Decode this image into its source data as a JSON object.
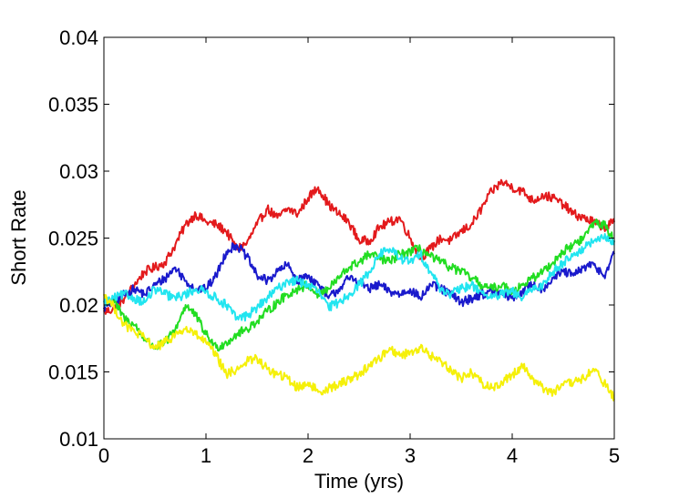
{
  "chart_data": {
    "type": "line",
    "title": "",
    "xlabel": "Time (yrs)",
    "ylabel": "Short Rate",
    "xlim": [
      0,
      5
    ],
    "ylim": [
      0.01,
      0.04
    ],
    "xticks": [
      0,
      1,
      2,
      3,
      4,
      5
    ],
    "yticks": [
      0.01,
      0.015,
      0.02,
      0.025,
      0.03,
      0.035,
      0.04
    ],
    "ytick_labels": [
      "0.01",
      "0.015",
      "0.02",
      "0.025",
      "0.03",
      "0.035",
      "0.04"
    ],
    "xtick_labels": [
      "0",
      "1",
      "2",
      "3",
      "4",
      "5"
    ],
    "grid": false,
    "legend": "none",
    "series": [
      {
        "color": "#e31a1c",
        "x": [
          0,
          0.1,
          0.2,
          0.3,
          0.4,
          0.5,
          0.6,
          0.7,
          0.8,
          0.9,
          1.0,
          1.1,
          1.2,
          1.3,
          1.4,
          1.5,
          1.6,
          1.7,
          1.8,
          1.9,
          2.0,
          2.1,
          2.2,
          2.3,
          2.4,
          2.5,
          2.6,
          2.7,
          2.8,
          2.9,
          3.0,
          3.1,
          3.2,
          3.3,
          3.4,
          3.5,
          3.6,
          3.7,
          3.8,
          3.9,
          4.0,
          4.1,
          4.2,
          4.3,
          4.4,
          4.5,
          4.6,
          4.7,
          4.8,
          4.9,
          5.0
        ],
        "y": [
          0.0195,
          0.0197,
          0.0205,
          0.0215,
          0.0225,
          0.0228,
          0.0232,
          0.0245,
          0.026,
          0.0268,
          0.0262,
          0.026,
          0.0255,
          0.0242,
          0.0246,
          0.026,
          0.0272,
          0.0265,
          0.0272,
          0.0268,
          0.028,
          0.0288,
          0.0275,
          0.0268,
          0.0262,
          0.0248,
          0.0248,
          0.0258,
          0.0262,
          0.0265,
          0.025,
          0.0235,
          0.0242,
          0.025,
          0.0248,
          0.0255,
          0.026,
          0.0272,
          0.0285,
          0.0292,
          0.0288,
          0.0285,
          0.0278,
          0.0282,
          0.028,
          0.0275,
          0.0268,
          0.0265,
          0.0262,
          0.0258,
          0.0262
        ]
      },
      {
        "color": "#1a1acc",
        "x": [
          0,
          0.1,
          0.2,
          0.3,
          0.4,
          0.5,
          0.6,
          0.7,
          0.8,
          0.9,
          1.0,
          1.1,
          1.2,
          1.3,
          1.4,
          1.5,
          1.6,
          1.7,
          1.8,
          1.9,
          2.0,
          2.1,
          2.2,
          2.3,
          2.4,
          2.5,
          2.6,
          2.7,
          2.8,
          2.9,
          3.0,
          3.1,
          3.2,
          3.3,
          3.4,
          3.5,
          3.6,
          3.7,
          3.8,
          3.9,
          4.0,
          4.1,
          4.2,
          4.3,
          4.4,
          4.5,
          4.6,
          4.7,
          4.8,
          4.9,
          5.0
        ],
        "y": [
          0.0198,
          0.0202,
          0.0208,
          0.0212,
          0.0208,
          0.0215,
          0.022,
          0.0228,
          0.0218,
          0.0212,
          0.0212,
          0.0222,
          0.024,
          0.0245,
          0.0236,
          0.0222,
          0.0218,
          0.0225,
          0.023,
          0.0218,
          0.0222,
          0.0215,
          0.0205,
          0.0212,
          0.022,
          0.0218,
          0.0212,
          0.0215,
          0.021,
          0.0208,
          0.0212,
          0.0205,
          0.0215,
          0.0212,
          0.0208,
          0.0202,
          0.0205,
          0.0208,
          0.021,
          0.0208,
          0.0205,
          0.021,
          0.0215,
          0.0212,
          0.022,
          0.0225,
          0.0222,
          0.0228,
          0.023,
          0.0222,
          0.0238
        ]
      },
      {
        "color": "#22dd22",
        "x": [
          0,
          0.1,
          0.2,
          0.3,
          0.4,
          0.5,
          0.6,
          0.7,
          0.8,
          0.9,
          1.0,
          1.1,
          1.2,
          1.3,
          1.4,
          1.5,
          1.6,
          1.7,
          1.8,
          1.9,
          2.0,
          2.1,
          2.2,
          2.3,
          2.4,
          2.5,
          2.6,
          2.7,
          2.8,
          2.9,
          3.0,
          3.1,
          3.2,
          3.3,
          3.4,
          3.5,
          3.6,
          3.7,
          3.8,
          3.9,
          4.0,
          4.1,
          4.2,
          4.3,
          4.4,
          4.5,
          4.6,
          4.7,
          4.8,
          4.9,
          5.0
        ],
        "y": [
          0.0205,
          0.0202,
          0.019,
          0.0185,
          0.0175,
          0.0168,
          0.0172,
          0.0182,
          0.02,
          0.0192,
          0.0178,
          0.0168,
          0.0172,
          0.0178,
          0.0182,
          0.0188,
          0.0195,
          0.0202,
          0.0208,
          0.0212,
          0.0215,
          0.0208,
          0.0212,
          0.022,
          0.0228,
          0.0232,
          0.0238,
          0.0235,
          0.0232,
          0.0238,
          0.024,
          0.0242,
          0.0236,
          0.0232,
          0.0228,
          0.0225,
          0.022,
          0.0215,
          0.0212,
          0.0215,
          0.021,
          0.0215,
          0.022,
          0.0225,
          0.0232,
          0.024,
          0.0245,
          0.025,
          0.0262,
          0.026,
          0.0248
        ]
      },
      {
        "color": "#22e5f0",
        "x": [
          0,
          0.1,
          0.2,
          0.3,
          0.4,
          0.5,
          0.6,
          0.7,
          0.8,
          0.9,
          1.0,
          1.1,
          1.2,
          1.3,
          1.4,
          1.5,
          1.6,
          1.7,
          1.8,
          1.9,
          2.0,
          2.1,
          2.2,
          2.3,
          2.4,
          2.5,
          2.6,
          2.7,
          2.8,
          2.9,
          3.0,
          3.1,
          3.2,
          3.3,
          3.4,
          3.5,
          3.6,
          3.7,
          3.8,
          3.9,
          4.0,
          4.1,
          4.2,
          4.3,
          4.4,
          4.5,
          4.6,
          4.7,
          4.8,
          4.9,
          5.0
        ],
        "y": [
          0.0202,
          0.0205,
          0.0208,
          0.0205,
          0.0202,
          0.0212,
          0.0208,
          0.0205,
          0.0208,
          0.0212,
          0.021,
          0.0205,
          0.02,
          0.019,
          0.0192,
          0.0198,
          0.0205,
          0.0212,
          0.0218,
          0.0218,
          0.0215,
          0.021,
          0.0198,
          0.0202,
          0.0208,
          0.0215,
          0.0225,
          0.0238,
          0.0242,
          0.0235,
          0.0232,
          0.0238,
          0.0225,
          0.0212,
          0.0208,
          0.0212,
          0.0215,
          0.021,
          0.0205,
          0.0208,
          0.021,
          0.0205,
          0.0212,
          0.0215,
          0.0225,
          0.0232,
          0.0238,
          0.0242,
          0.0248,
          0.025,
          0.0248
        ]
      },
      {
        "color": "#f5f00a",
        "x": [
          0,
          0.1,
          0.2,
          0.3,
          0.4,
          0.5,
          0.6,
          0.7,
          0.8,
          0.9,
          1.0,
          1.1,
          1.2,
          1.3,
          1.4,
          1.5,
          1.6,
          1.7,
          1.8,
          1.9,
          2.0,
          2.1,
          2.2,
          2.3,
          2.4,
          2.5,
          2.6,
          2.7,
          2.8,
          2.9,
          3.0,
          3.1,
          3.2,
          3.3,
          3.4,
          3.5,
          3.6,
          3.7,
          3.8,
          3.9,
          4.0,
          4.1,
          4.2,
          4.3,
          4.4,
          4.5,
          4.6,
          4.7,
          4.8,
          4.9,
          5.0
        ],
        "y": [
          0.0208,
          0.0198,
          0.0185,
          0.018,
          0.0175,
          0.0168,
          0.0172,
          0.0178,
          0.0182,
          0.0178,
          0.0172,
          0.0162,
          0.0148,
          0.0152,
          0.0158,
          0.016,
          0.0152,
          0.0148,
          0.0145,
          0.0138,
          0.0142,
          0.0135,
          0.0138,
          0.014,
          0.0145,
          0.0148,
          0.0155,
          0.016,
          0.0168,
          0.0162,
          0.0165,
          0.0168,
          0.0162,
          0.0158,
          0.0152,
          0.0145,
          0.015,
          0.0142,
          0.0138,
          0.0142,
          0.0148,
          0.0155,
          0.0145,
          0.0138,
          0.0135,
          0.014,
          0.0142,
          0.0145,
          0.0152,
          0.0142,
          0.013
        ]
      }
    ]
  }
}
